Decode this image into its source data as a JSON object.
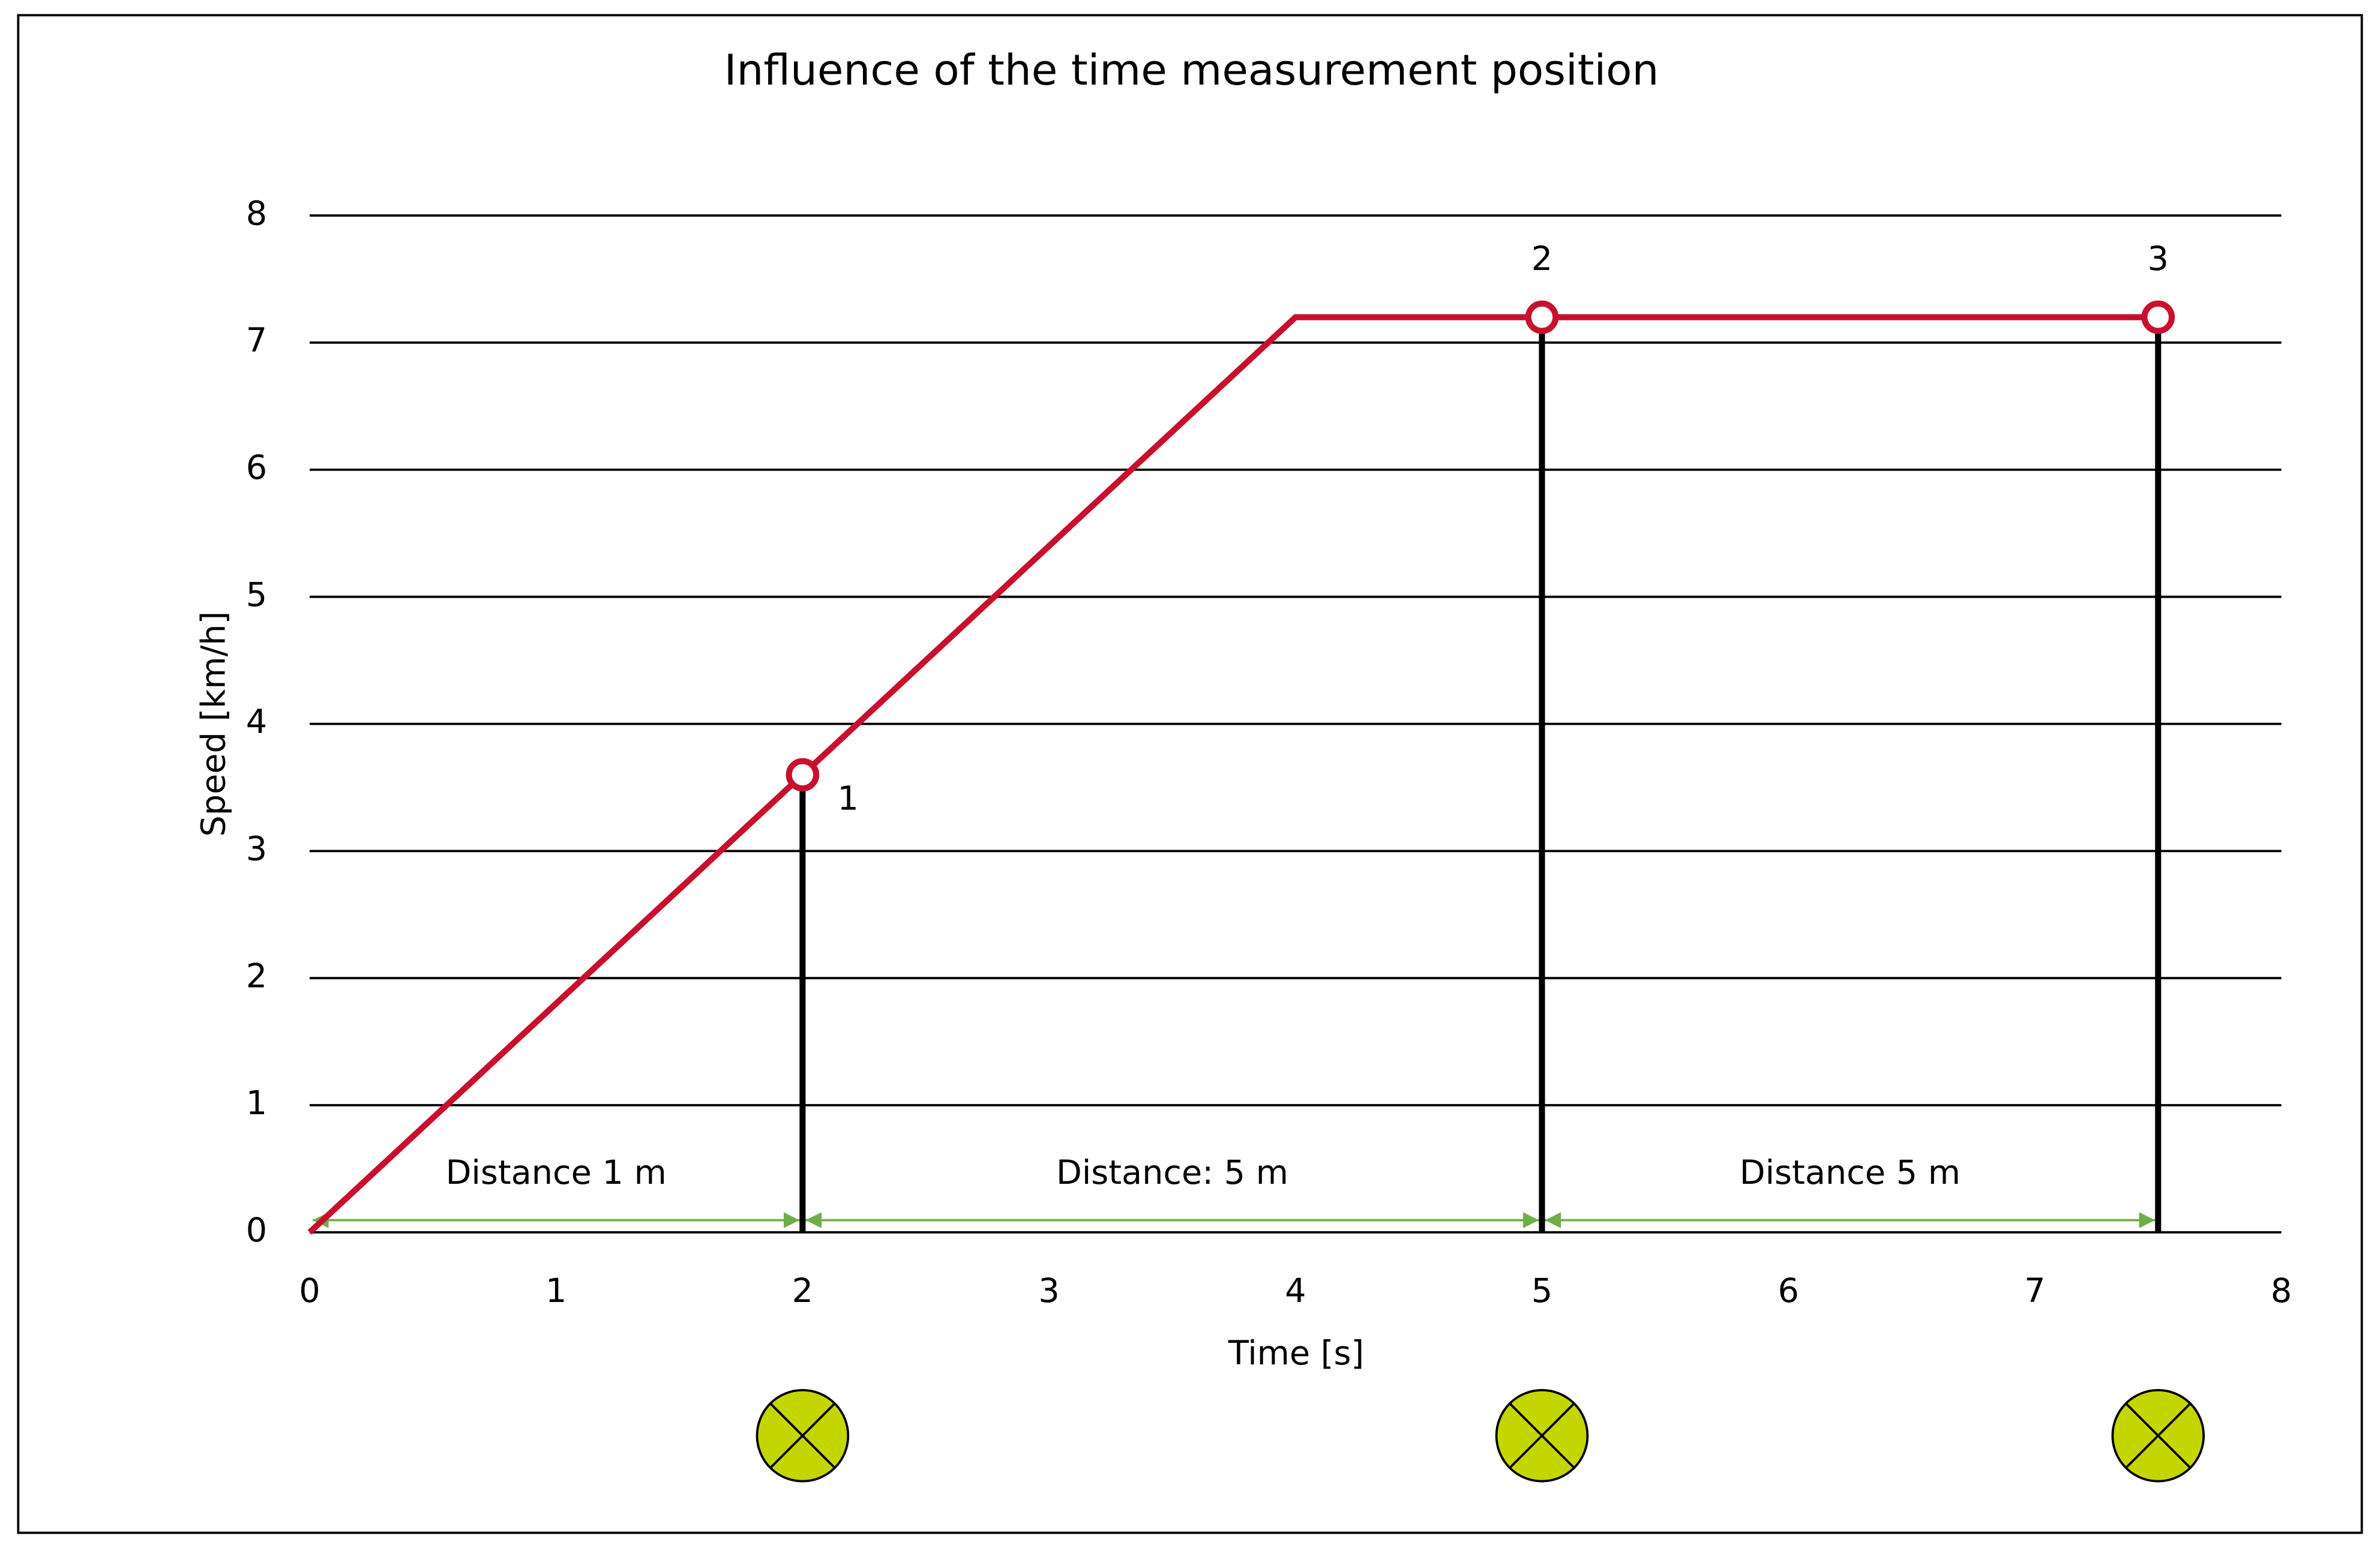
{
  "chart_data": {
    "type": "line",
    "title": "Influence of the time measurement position",
    "xlabel": "Time [s]",
    "ylabel": "Speed [km/h]",
    "xlim": [
      0,
      8
    ],
    "ylim": [
      0,
      8
    ],
    "xticks": [
      0,
      1,
      2,
      3,
      4,
      5,
      6,
      7,
      8
    ],
    "yticks": [
      0,
      1,
      2,
      3,
      4,
      5,
      6,
      7,
      8
    ],
    "grid": true,
    "series": [
      {
        "color": "#c8102e",
        "x": [
          0,
          4,
          7.5
        ],
        "values": [
          0,
          7.2,
          7.2
        ]
      }
    ],
    "measurement_points": {
      "x": [
        2,
        5,
        7.5
      ],
      "values": [
        3.6,
        7.2,
        7.2
      ],
      "labels": [
        "1",
        "2",
        "3"
      ],
      "color": "#000000",
      "sensor_color": "#c4d600"
    },
    "distances": [
      {
        "label": "Distance 1 m",
        "start": 0,
        "end": 2
      },
      {
        "label": "Distance: 5 m",
        "start": 2,
        "end": 5
      },
      {
        "label": "Distance 5 m",
        "start": 5,
        "end": 7.5
      }
    ],
    "distance_color": "#70ad47"
  }
}
